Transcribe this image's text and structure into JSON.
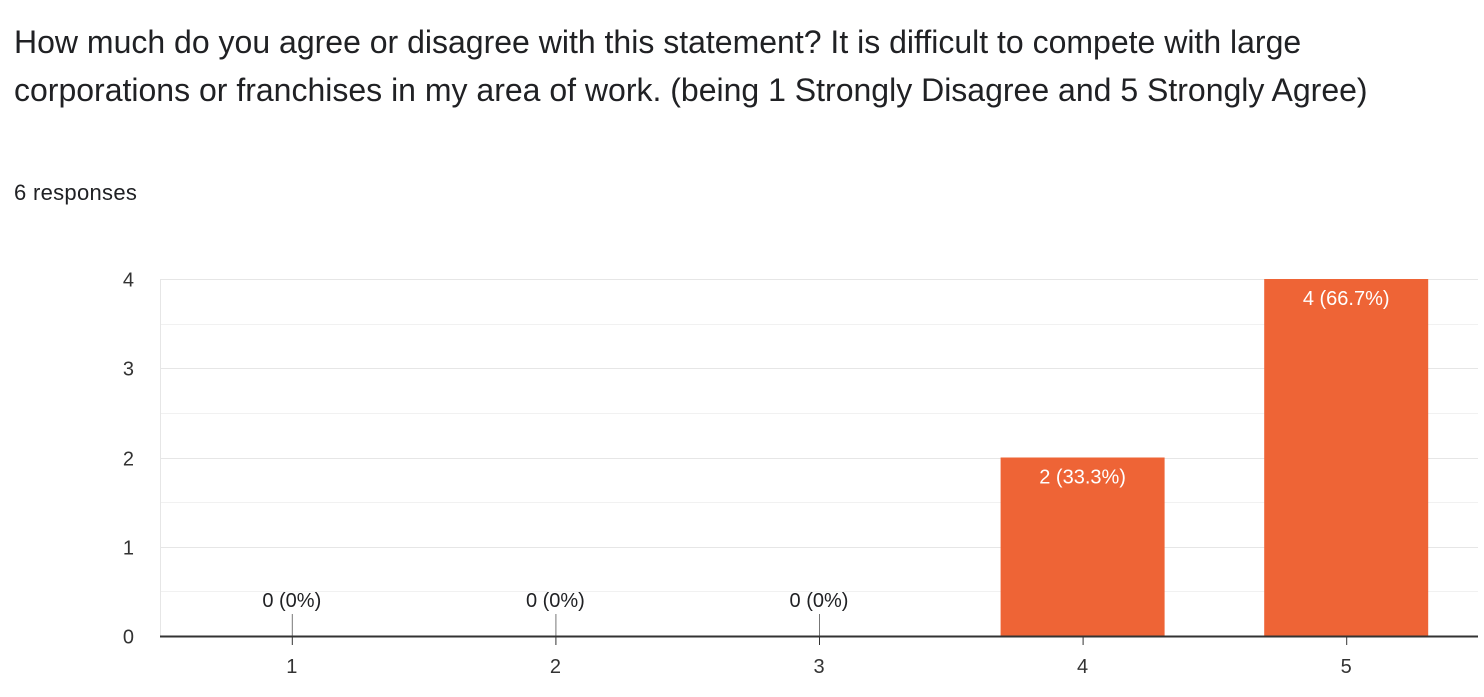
{
  "question": {
    "title": "How much do you agree or disagree with this statement? It is difficult to compete with large corporations or franchises in my area of work. (being 1 Strongly Disagree and 5 Strongly Agree)",
    "responses": "6 responses"
  },
  "colors": {
    "bar": "#ee6436",
    "bar_label_inside": "#ffffff",
    "bar_label_outside": "#202124",
    "gridline_major": "#e6e6e6",
    "gridline_minor": "#f1f1f1",
    "axis": "#333333",
    "tick_label": "#333333"
  },
  "chart_data": {
    "type": "bar",
    "title": "",
    "xlabel": "",
    "ylabel": "",
    "categories": [
      "1",
      "2",
      "3",
      "4",
      "5"
    ],
    "values": [
      0,
      0,
      0,
      2,
      4
    ],
    "data_labels": [
      "0 (0%)",
      "0 (0%)",
      "0 (0%)",
      "2 (33.3%)",
      "4 (66.7%)"
    ],
    "ylim": [
      0,
      4
    ],
    "yticks": [
      0,
      1,
      2,
      3,
      4
    ],
    "grid": true
  }
}
